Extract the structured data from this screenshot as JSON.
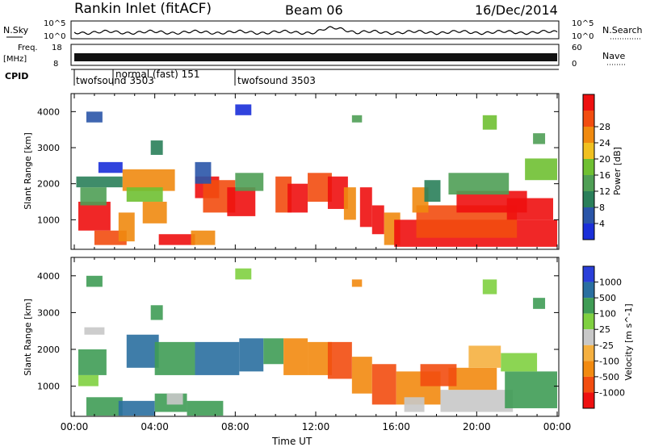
{
  "header": {
    "station": "Rankin Inlet (fitACF)",
    "beam": "Beam 06",
    "date": "16/Dec/2014"
  },
  "top_panels": {
    "nsky_label": "N.Sky",
    "nsky_ticks": [
      "10^5",
      "10^0"
    ],
    "nsearch_label": "N.Search",
    "nsearch_ticks": [
      "10^5",
      "10^0"
    ],
    "freq_label_1": "Freq.",
    "freq_label_2": "[MHz]",
    "freq_ticks": [
      "18",
      "8"
    ],
    "nave_label": "Nave",
    "nave_ticks": [
      "60",
      "0"
    ],
    "cpid_label": "CPID",
    "cpid_segments": [
      {
        "label": "twofsound 3503",
        "start_hour": 0
      },
      {
        "label": "normal (fast) 151",
        "start_hour": 2
      },
      {
        "label": "twofsound 3503",
        "start_hour": 8
      }
    ]
  },
  "chart_data": [
    {
      "type": "heatmap",
      "name": "power",
      "ylabel": "Slant Range [km]",
      "y_ticks": [
        "1000",
        "2000",
        "3000",
        "4000"
      ],
      "ylim": [
        180,
        4500
      ],
      "xlim": [
        0,
        24
      ],
      "colorbar_label": "Power [dB]",
      "colorbar_ticks": [
        "4",
        "8",
        "12",
        "16",
        "20",
        "24",
        "28"
      ],
      "colorbar_colors": [
        "#1a2fd9",
        "#2a55a8",
        "#2a7f5a",
        "#4f9f55",
        "#6fc032",
        "#f0c020",
        "#f08a10",
        "#f24d10",
        "#ee1010"
      ],
      "cells": [
        [
          0.2,
          1.8,
          700,
          1500,
          "#ee1010"
        ],
        [
          0.3,
          1.6,
          1400,
          1900,
          "#4f9f55"
        ],
        [
          0.1,
          2.4,
          1900,
          2200,
          "#2a7f5a"
        ],
        [
          1.0,
          2.6,
          300,
          700,
          "#f24d10"
        ],
        [
          2.2,
          3.0,
          400,
          1200,
          "#f08a10"
        ],
        [
          3.4,
          4.6,
          900,
          1500,
          "#f08a10"
        ],
        [
          4.2,
          6.0,
          300,
          600,
          "#ee1010"
        ],
        [
          5.8,
          7.0,
          300,
          700,
          "#f08a10"
        ],
        [
          1.2,
          2.4,
          2300,
          2600,
          "#1a2fd9"
        ],
        [
          2.4,
          5.0,
          1800,
          2400,
          "#f08a10"
        ],
        [
          2.6,
          4.4,
          1500,
          1900,
          "#6fc032"
        ],
        [
          6.0,
          7.2,
          1600,
          2200,
          "#ee1010"
        ],
        [
          6.4,
          8.0,
          1200,
          2100,
          "#f24d10"
        ],
        [
          6.0,
          6.8,
          2000,
          2600,
          "#2a55a8"
        ],
        [
          7.6,
          9.0,
          1100,
          1900,
          "#ee1010"
        ],
        [
          8.0,
          9.4,
          1800,
          2300,
          "#4f9f55"
        ],
        [
          10.0,
          10.8,
          1200,
          2200,
          "#f24d10"
        ],
        [
          10.6,
          11.6,
          1200,
          2000,
          "#ee1010"
        ],
        [
          11.6,
          12.8,
          1500,
          2300,
          "#f24d10"
        ],
        [
          12.6,
          13.6,
          1300,
          2200,
          "#ee1010"
        ],
        [
          13.4,
          14.0,
          1000,
          1900,
          "#f08a10"
        ],
        [
          14.2,
          14.8,
          800,
          1900,
          "#ee1010"
        ],
        [
          14.8,
          15.4,
          600,
          1400,
          "#ee1010"
        ],
        [
          15.4,
          16.2,
          300,
          1200,
          "#f08a10"
        ],
        [
          15.9,
          24.0,
          250,
          1000,
          "#ee1010"
        ],
        [
          17.0,
          22.0,
          500,
          1400,
          "#f24d10"
        ],
        [
          19.0,
          22.5,
          1200,
          1800,
          "#ee1010"
        ],
        [
          21.5,
          23.8,
          1000,
          1600,
          "#ee1010"
        ],
        [
          18.6,
          21.6,
          1700,
          2300,
          "#4f9f55"
        ],
        [
          22.4,
          24.0,
          2100,
          2700,
          "#6fc032"
        ],
        [
          16.8,
          17.6,
          1200,
          1900,
          "#f08a10"
        ],
        [
          8.0,
          8.8,
          3900,
          4200,
          "#1a2fd9"
        ],
        [
          17.4,
          18.2,
          1500,
          2100,
          "#2a7f5a"
        ],
        [
          0.6,
          1.4,
          3700,
          4000,
          "#2a55a8"
        ],
        [
          3.8,
          4.4,
          2800,
          3200,
          "#2a7f5a"
        ],
        [
          20.3,
          21.0,
          3500,
          3900,
          "#6fc032"
        ],
        [
          22.8,
          23.4,
          3100,
          3400,
          "#4f9f55"
        ],
        [
          13.8,
          14.3,
          3700,
          3900,
          "#4f9f55"
        ]
      ]
    },
    {
      "type": "heatmap",
      "name": "velocity",
      "ylabel": "Slant Range [km]",
      "y_ticks": [
        "1000",
        "2000",
        "3000",
        "4000"
      ],
      "ylim": [
        180,
        4500
      ],
      "xlim": [
        0,
        24
      ],
      "colorbar_label": "Velocity [m s^-1]",
      "colorbar_ticks": [
        "1000",
        "500",
        "100",
        "25",
        "-25",
        "-100",
        "-500",
        "-1000"
      ],
      "colorbar_colors": [
        "#2a3fd9",
        "#2a6fa0",
        "#3f9c55",
        "#7fd040",
        "#c8c8c8",
        "#f5b040",
        "#f28a10",
        "#f24d10",
        "#ee1010"
      ],
      "cells": [
        [
          0.2,
          1.6,
          1300,
          2000,
          "#3f9c55"
        ],
        [
          0.2,
          1.2,
          1000,
          1300,
          "#7fd040"
        ],
        [
          0.6,
          2.4,
          200,
          700,
          "#3f9c55"
        ],
        [
          2.2,
          4.0,
          200,
          600,
          "#2a6fa0"
        ],
        [
          4.0,
          5.6,
          300,
          800,
          "#3f9c55"
        ],
        [
          5.6,
          7.4,
          200,
          600,
          "#3f9c55"
        ],
        [
          2.6,
          4.2,
          1500,
          2400,
          "#2a6fa0"
        ],
        [
          4.0,
          6.0,
          1300,
          2200,
          "#3f9c55"
        ],
        [
          6.0,
          8.2,
          1300,
          2200,
          "#2a6fa0"
        ],
        [
          8.2,
          9.4,
          1400,
          2300,
          "#2a6fa0"
        ],
        [
          9.4,
          10.4,
          1600,
          2300,
          "#3f9c55"
        ],
        [
          10.4,
          11.6,
          1300,
          2300,
          "#f28a10"
        ],
        [
          11.6,
          12.8,
          1300,
          2200,
          "#f28a10"
        ],
        [
          12.6,
          13.8,
          1200,
          2200,
          "#f24d10"
        ],
        [
          13.8,
          14.8,
          800,
          1800,
          "#f28a10"
        ],
        [
          14.8,
          16.0,
          500,
          1600,
          "#f24d10"
        ],
        [
          16.0,
          18.2,
          500,
          1400,
          "#f28a10"
        ],
        [
          16.4,
          17.4,
          300,
          700,
          "#c8c8c8"
        ],
        [
          18.2,
          21.8,
          300,
          900,
          "#c8c8c8"
        ],
        [
          18.6,
          21.0,
          900,
          1500,
          "#f28a10"
        ],
        [
          21.4,
          24.0,
          400,
          1400,
          "#3f9c55"
        ],
        [
          21.2,
          23.0,
          1400,
          1900,
          "#7fd040"
        ],
        [
          17.2,
          19.0,
          1000,
          1600,
          "#f24d10"
        ],
        [
          19.6,
          21.2,
          1500,
          2100,
          "#f5b040"
        ],
        [
          8.0,
          8.8,
          3900,
          4200,
          "#7fd040"
        ],
        [
          0.6,
          1.4,
          3700,
          4000,
          "#3f9c55"
        ],
        [
          3.8,
          4.4,
          2800,
          3200,
          "#3f9c55"
        ],
        [
          20.3,
          21.0,
          3500,
          3900,
          "#7fd040"
        ],
        [
          22.8,
          23.4,
          3100,
          3400,
          "#3f9c55"
        ],
        [
          13.8,
          14.3,
          3700,
          3900,
          "#f28a10"
        ],
        [
          0.5,
          1.5,
          2400,
          2600,
          "#c8c8c8"
        ],
        [
          4.6,
          5.4,
          500,
          800,
          "#c8c8c8"
        ]
      ]
    }
  ],
  "x_axis": {
    "ticks": [
      "00:00",
      "04:00",
      "08:00",
      "12:00",
      "16:00",
      "20:00",
      "00:00"
    ],
    "label": "Time UT"
  }
}
